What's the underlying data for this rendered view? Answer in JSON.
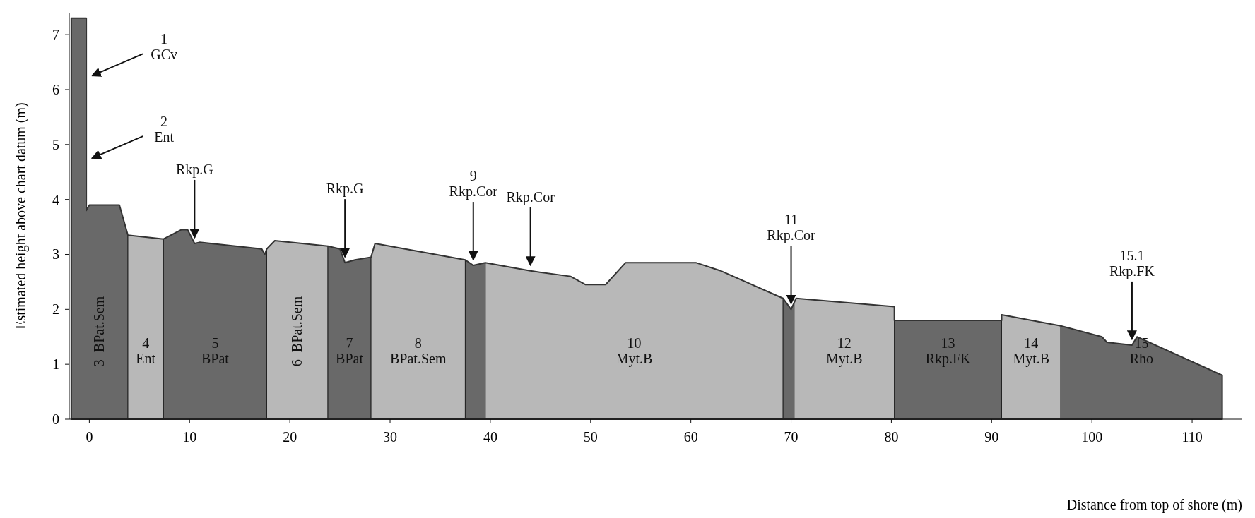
{
  "chart_data": {
    "type": "area",
    "xlabel": "Distance from top of shore (m)",
    "ylabel": "Estimated height above chart datum (m)",
    "x": [
      -1.8,
      -0.3,
      -0.3,
      0,
      3,
      3.85,
      7.4,
      9.2,
      9.8,
      10.5,
      11,
      17.2,
      17.5,
      17.7,
      18.5,
      23.8,
      25,
      25.5,
      26.5,
      28.1,
      28.5,
      37.5,
      38.3,
      39.5,
      44,
      48,
      49.5,
      51.5,
      53.5,
      60.5,
      63,
      69.2,
      70,
      70.5,
      80.3,
      80.3,
      91,
      91,
      96.9,
      101,
      101.5,
      104,
      104.5,
      113
    ],
    "values": [
      7.3,
      7.3,
      3.8,
      3.9,
      3.9,
      3.35,
      3.28,
      3.45,
      3.45,
      3.2,
      3.22,
      3.1,
      3.0,
      3.1,
      3.25,
      3.15,
      3.1,
      2.85,
      2.9,
      2.95,
      3.2,
      2.9,
      2.8,
      2.85,
      2.7,
      2.6,
      2.45,
      2.45,
      2.85,
      2.85,
      2.7,
      2.2,
      2.0,
      2.2,
      2.05,
      1.8,
      1.8,
      1.9,
      1.7,
      1.5,
      1.4,
      1.35,
      1.5,
      0.8
    ],
    "color": "#333333",
    "xlim": [
      -2,
      115
    ],
    "ylim": [
      0,
      7.4
    ],
    "xticks": [
      0,
      10,
      20,
      30,
      40,
      50,
      60,
      70,
      80,
      90,
      100,
      110
    ],
    "yticks": [
      0,
      1,
      2,
      3,
      4,
      5,
      6,
      7
    ],
    "grid": false,
    "bands": [
      {
        "axis": "x",
        "from": -1.8,
        "to": 3.85,
        "label": "3  BPat.Sem",
        "color": "#6e6e6e"
      },
      {
        "axis": "x",
        "from": 3.85,
        "to": 7.4,
        "label": "4\nEnt",
        "color": "#c4c4c4"
      },
      {
        "axis": "x",
        "from": 7.4,
        "to": 17.7,
        "label": "5\nBPat",
        "color": "#6e6e6e"
      },
      {
        "axis": "x",
        "from": 17.7,
        "to": 23.8,
        "label": "6  BPat.Sem",
        "color": "#c4c4c4"
      },
      {
        "axis": "x",
        "from": 23.8,
        "to": 28.1,
        "label": "7\nBPat",
        "color": "#6e6e6e"
      },
      {
        "axis": "x",
        "from": 28.1,
        "to": 37.5,
        "label": "8\nBPat.Sem",
        "color": "#c4c4c4"
      },
      {
        "axis": "x",
        "from": 37.5,
        "to": 39.5,
        "color": "#6e6e6e"
      },
      {
        "axis": "x",
        "from": 39.5,
        "to": 69.2,
        "label": "10\nMyt.B",
        "color": "#c4c4c4"
      },
      {
        "axis": "x",
        "from": 69.2,
        "to": 70.3,
        "color": "#6e6e6e"
      },
      {
        "axis": "x",
        "from": 70.3,
        "to": 80.3,
        "label": "12\nMyt.B",
        "color": "#c4c4c4"
      },
      {
        "axis": "x",
        "from": 80.3,
        "to": 91,
        "label": "13\nRkp.FK",
        "color": "#6e6e6e"
      },
      {
        "axis": "x",
        "from": 91,
        "to": 96.9,
        "label": "14\nMyt.B",
        "color": "#c4c4c4"
      },
      {
        "axis": "x",
        "from": 96.9,
        "to": 113,
        "label": "15\nRho",
        "color": "#6e6e6e"
      }
    ],
    "annotations": [
      {
        "text": "1\nGCv",
        "x": -0.3,
        "y": 6.2
      },
      {
        "text": "2\nEnt",
        "x": -0.3,
        "y": 4.7
      },
      {
        "text": "Rkp.G",
        "x": 10.5,
        "y": 3.2
      },
      {
        "text": "Rkp.G",
        "x": 25.5,
        "y": 2.85
      },
      {
        "text": "9\nRkp.Cor",
        "x": 38.3,
        "y": 2.8
      },
      {
        "text": "Rkp.Cor",
        "x": 44,
        "y": 2.7
      },
      {
        "text": "11\nRkp.Cor",
        "x": 70,
        "y": 2.0
      },
      {
        "text": "15.1\nRkp.FK",
        "x": 104,
        "y": 1.35
      }
    ]
  }
}
